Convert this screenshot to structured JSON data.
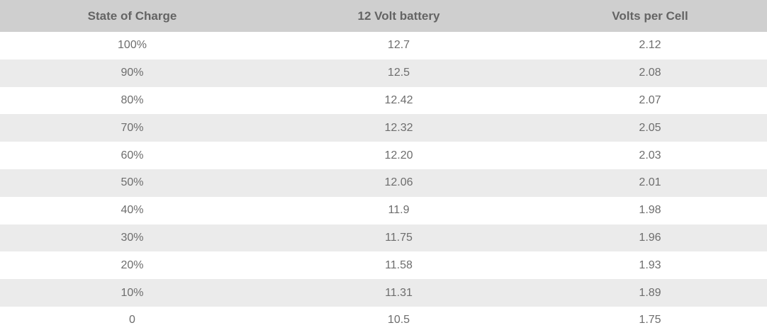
{
  "table": {
    "headers": [
      "State of Charge",
      "12 Volt battery",
      "Volts per Cell"
    ],
    "rows": [
      [
        "100%",
        "12.7",
        "2.12"
      ],
      [
        "90%",
        "12.5",
        "2.08"
      ],
      [
        "80%",
        "12.42",
        "2.07"
      ],
      [
        "70%",
        "12.32",
        "2.05"
      ],
      [
        "60%",
        "12.20",
        "2.03"
      ],
      [
        "50%",
        "12.06",
        "2.01"
      ],
      [
        "40%",
        "11.9",
        "1.98"
      ],
      [
        "30%",
        "11.75",
        "1.96"
      ],
      [
        "20%",
        "11.58",
        "1.93"
      ],
      [
        "10%",
        "11.31",
        "1.89"
      ],
      [
        "0",
        "10.5",
        "1.75"
      ]
    ]
  },
  "colors": {
    "header_bg": "#cfcfcf",
    "stripe_bg": "#ebebeb",
    "row_bg": "#ffffff",
    "text": "#6d6d6d"
  }
}
